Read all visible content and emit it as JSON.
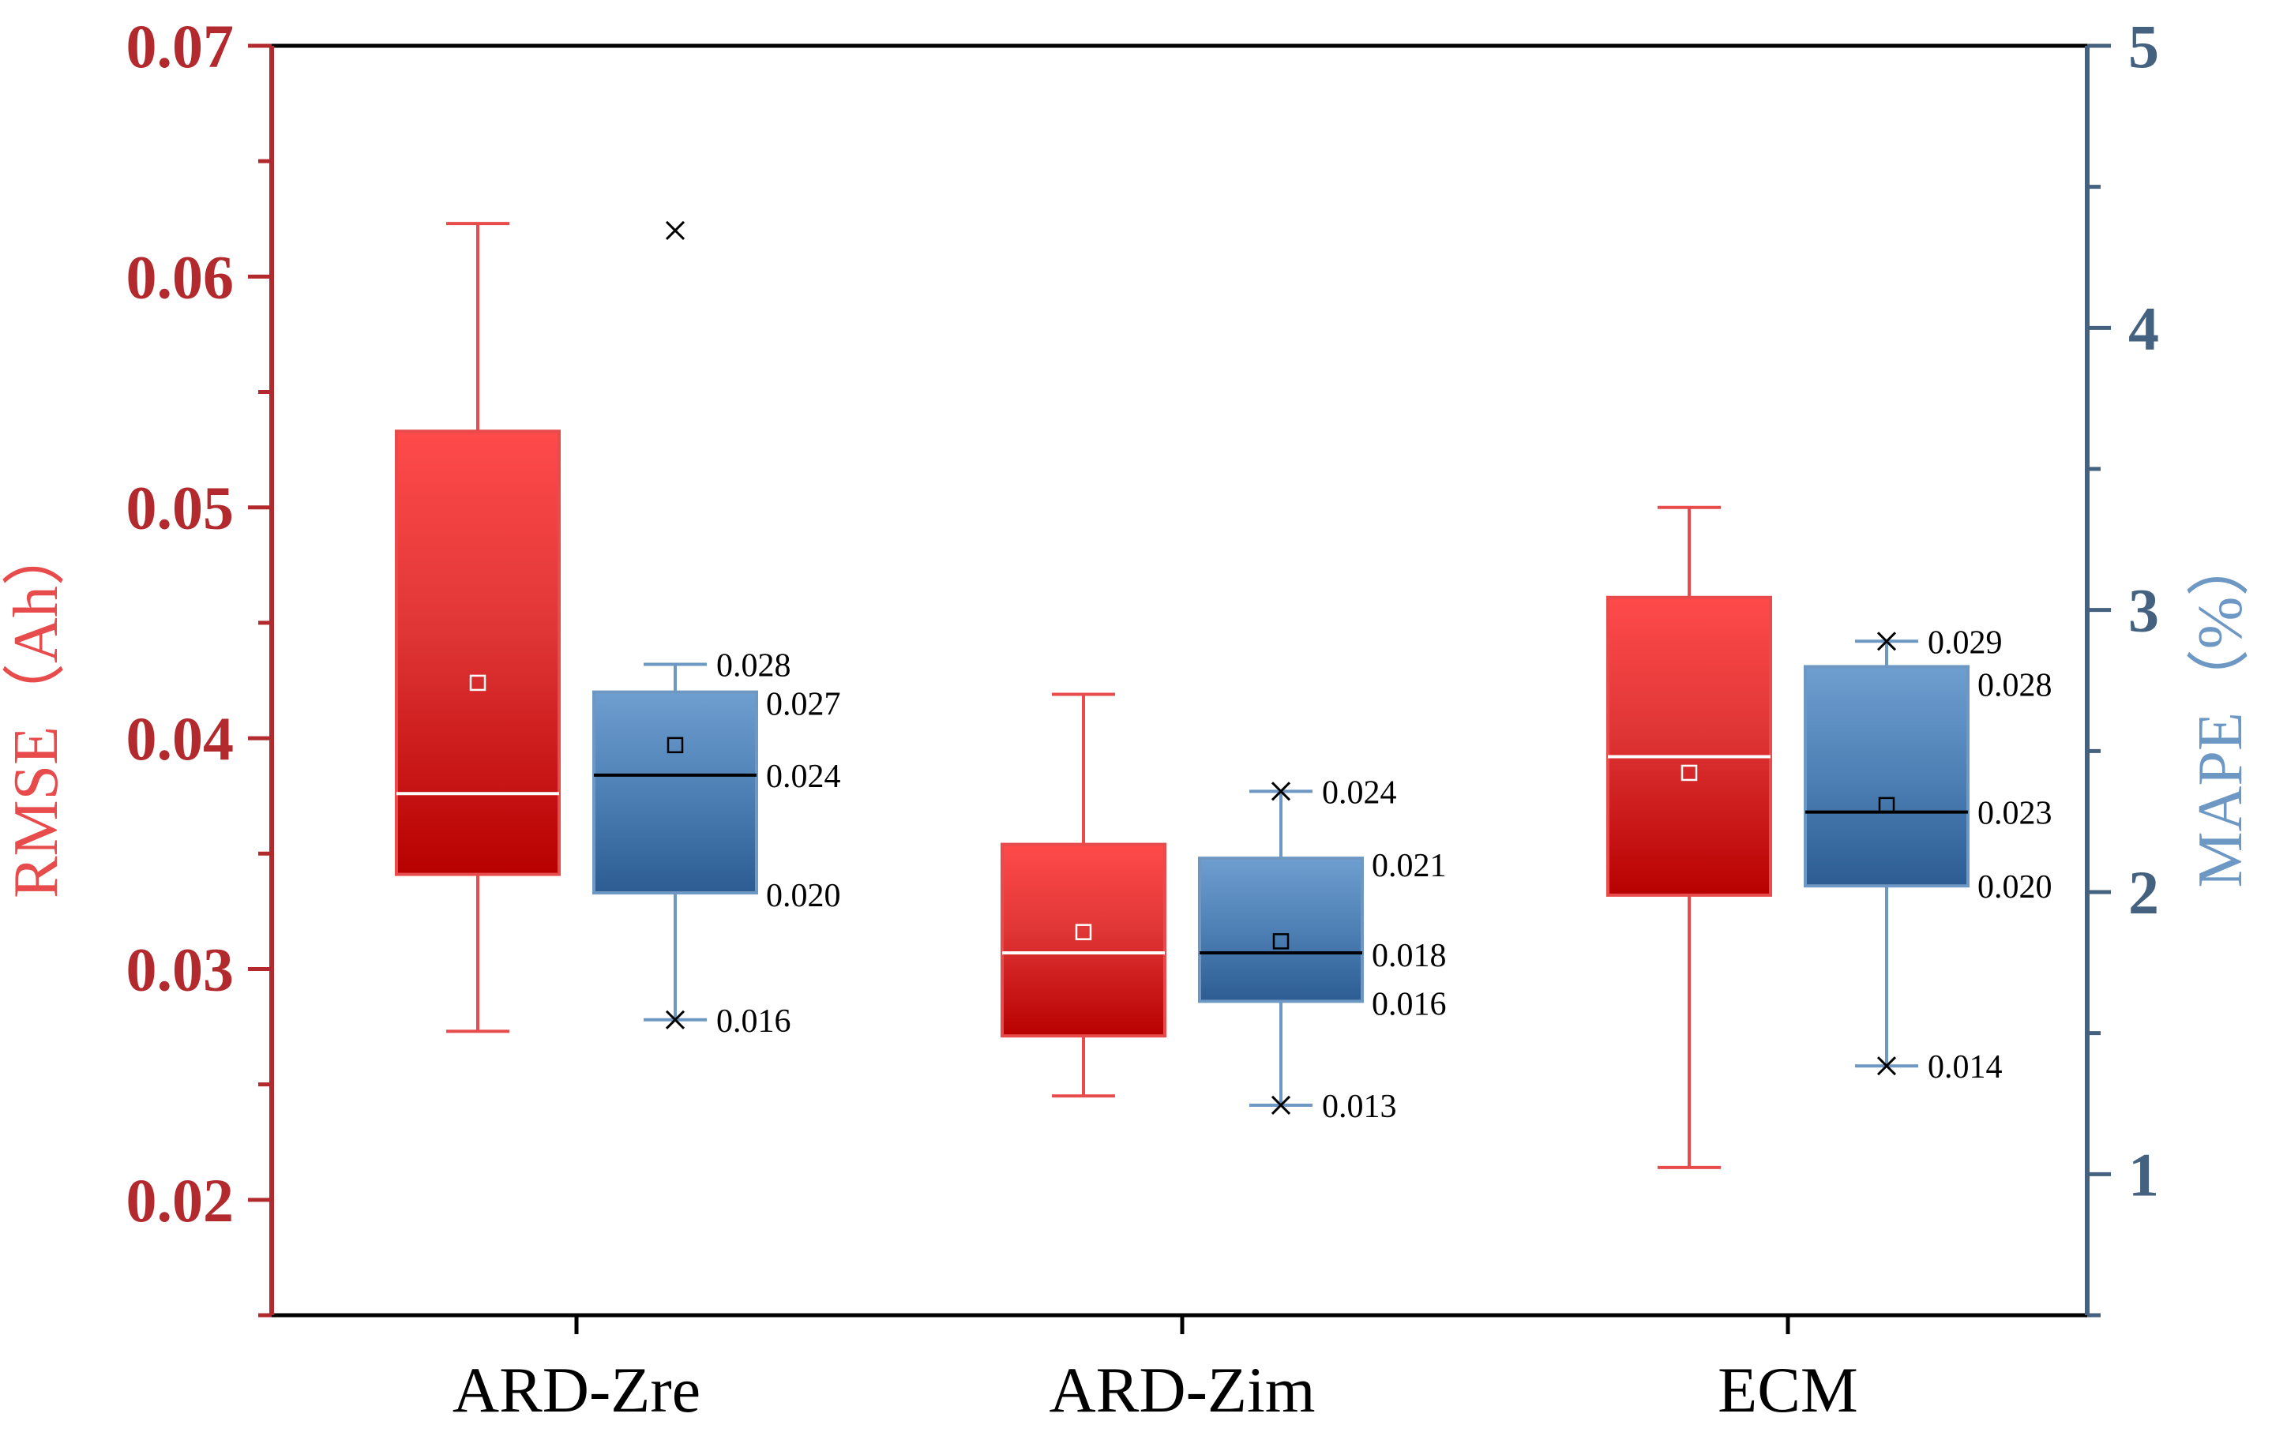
{
  "chart_data": {
    "type": "box",
    "categories": [
      "ARD-Zre",
      "ARD-Zim",
      "ECM"
    ],
    "left_axis": {
      "label": "RMSE（Ah）",
      "range": [
        0.015,
        0.07
      ],
      "ticks": [
        0.02,
        0.03,
        0.04,
        0.05,
        0.06,
        0.07
      ],
      "tick_labels": [
        "0.02",
        "0.03",
        "0.04",
        "0.05",
        "0.06",
        "0.07"
      ],
      "color": "#b22a2e"
    },
    "right_axis": {
      "label": "MAPE（%）",
      "range": [
        0.5,
        5
      ],
      "ticks": [
        1,
        2,
        3,
        4,
        5
      ],
      "tick_labels": [
        "1",
        "2",
        "3",
        "4",
        "5"
      ],
      "color": "#44617f"
    },
    "series": [
      {
        "name": "RMSE",
        "axis": "left",
        "color": "#e84b4b",
        "boxes": [
          {
            "category": "ARD-Zre",
            "whisker_low": 0.0273,
            "q1": 0.0341,
            "median": 0.0376,
            "q3": 0.0533,
            "whisker_high": 0.0623,
            "mean": 0.0424
          },
          {
            "category": "ARD-Zim",
            "whisker_low": 0.0245,
            "q1": 0.0271,
            "median": 0.0307,
            "q3": 0.0354,
            "whisker_high": 0.0419,
            "mean": 0.0316
          },
          {
            "category": "ECM",
            "whisker_low": 0.0214,
            "q1": 0.0332,
            "median": 0.0392,
            "q3": 0.0461,
            "whisker_high": 0.05,
            "mean": 0.0385
          }
        ]
      },
      {
        "name": "MAPE",
        "axis": "left",
        "color": "#6e98c4",
        "boxes": [
          {
            "category": "ARD-Zre",
            "whisker_low": 0.0278,
            "q1": 0.0333,
            "median": 0.0384,
            "q3": 0.042,
            "whisker_high": 0.0432,
            "mean": 0.0397,
            "outliers": [
              0.062
            ],
            "label_low": "0.016",
            "label_q1": "0.020",
            "label_median": "0.024",
            "label_q3": "0.027",
            "label_high": "0.028"
          },
          {
            "category": "ARD-Zim",
            "whisker_low": 0.0241,
            "q1": 0.0286,
            "median": 0.0307,
            "q3": 0.0348,
            "whisker_high": 0.0377,
            "mean": 0.0312,
            "outliers": [],
            "label_low": "0.013",
            "label_q1": "0.016",
            "label_median": "0.018",
            "label_q3": "0.021",
            "label_high": "0.024"
          },
          {
            "category": "ECM",
            "whisker_low": 0.0258,
            "q1": 0.0336,
            "median": 0.0368,
            "q3": 0.0431,
            "whisker_high": 0.0442,
            "mean": 0.0371,
            "outliers": [],
            "label_low": "0.014",
            "label_q1": "0.020",
            "label_median": "0.023",
            "label_q3": "0.028",
            "label_high": "0.029"
          }
        ]
      }
    ]
  }
}
